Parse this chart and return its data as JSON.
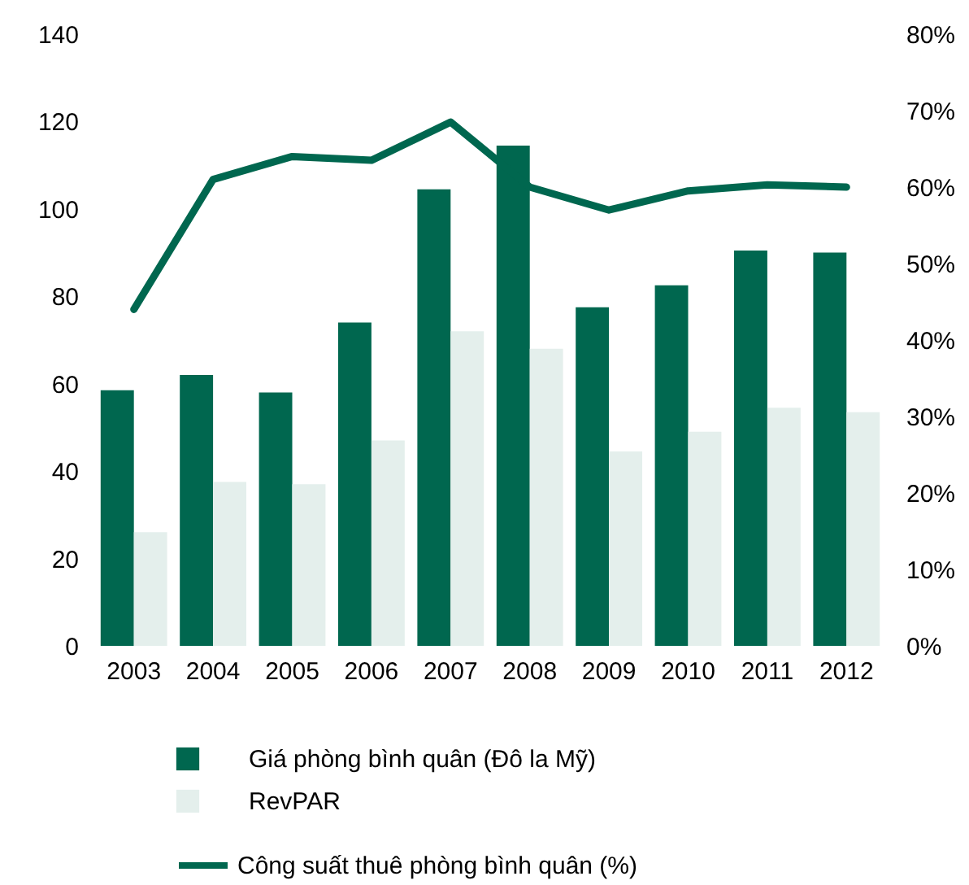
{
  "chart_data": {
    "type": "bar",
    "categories": [
      "2003",
      "2004",
      "2005",
      "2006",
      "2007",
      "2008",
      "2009",
      "2010",
      "2011",
      "2012"
    ],
    "series": [
      {
        "name": "Giá phòng bình quân (Đô la Mỹ)",
        "color": "#00674f",
        "values": [
          58.5,
          62,
          58,
          74,
          104.5,
          114.5,
          77.5,
          82.5,
          90.5,
          90
        ]
      },
      {
        "name": "RevPAR",
        "color": "#e4efec",
        "values": [
          26,
          37.5,
          37,
          47,
          72,
          68,
          44.5,
          49,
          54.5,
          53.5
        ]
      },
      {
        "name": "Công suất thuê phòng bình quân (%)",
        "color": "#00674f",
        "type": "line",
        "axis": "y2",
        "values": [
          44,
          61,
          64,
          63.5,
          68.5,
          60,
          57,
          59.5,
          60.3,
          60
        ]
      }
    ],
    "ylim": [
      0,
      140
    ],
    "yticks": [
      0,
      20,
      40,
      60,
      80,
      100,
      120,
      140
    ],
    "y2lim": [
      0,
      80
    ],
    "y2ticks": [
      {
        "value": 0,
        "label": "0%"
      },
      {
        "value": 10,
        "label": "10%"
      },
      {
        "value": 20,
        "label": "20%"
      },
      {
        "value": 30,
        "label": "30%"
      },
      {
        "value": 40,
        "label": "40%"
      },
      {
        "value": 50,
        "label": "50%"
      },
      {
        "value": 60,
        "label": "60%"
      },
      {
        "value": 70,
        "label": "70%"
      },
      {
        "value": 80,
        "label": "80%"
      }
    ],
    "grid": false,
    "legend": "bottom",
    "marker": "none",
    "line_style": "solid"
  }
}
